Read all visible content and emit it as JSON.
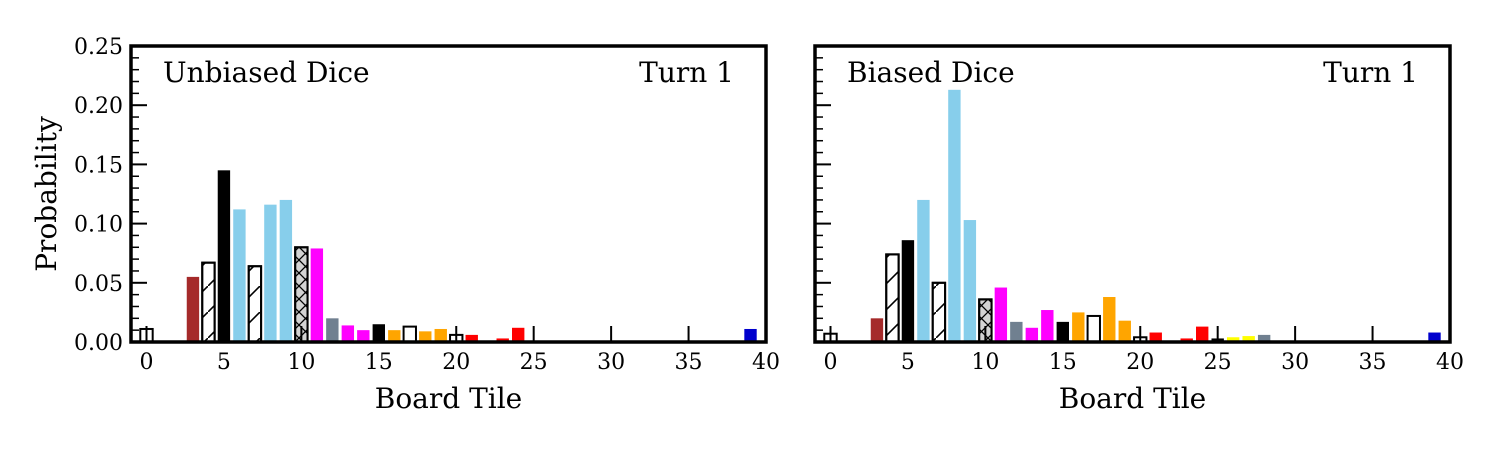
{
  "chart_data": [
    {
      "type": "bar",
      "annotation_left": "Unbiased Dice",
      "annotation_right": "Turn 1",
      "xlabel": "Board Tile",
      "ylabel": "Probability",
      "xlim": [
        -1,
        40
      ],
      "ylim": [
        0,
        0.25
      ],
      "xticks": [
        "0",
        "5",
        "10",
        "15",
        "20",
        "25",
        "30",
        "35",
        "40"
      ],
      "yticks": [
        "0.00",
        "0.05",
        "0.10",
        "0.15",
        "0.20",
        "0.25"
      ],
      "bars": [
        {
          "x": 0,
          "value": 0.011,
          "color": "#ffffff",
          "hatch": "none"
        },
        {
          "x": 3,
          "value": 0.055,
          "color": "#a52a2a",
          "hatch": "none"
        },
        {
          "x": 4,
          "value": 0.067,
          "color": "#ffffff",
          "hatch": "slash"
        },
        {
          "x": 5,
          "value": 0.145,
          "color": "#000000",
          "hatch": "none"
        },
        {
          "x": 6,
          "value": 0.112,
          "color": "#87ceeb",
          "hatch": "none"
        },
        {
          "x": 7,
          "value": 0.064,
          "color": "#ffffff",
          "hatch": "slash"
        },
        {
          "x": 8,
          "value": 0.116,
          "color": "#87ceeb",
          "hatch": "none"
        },
        {
          "x": 9,
          "value": 0.12,
          "color": "#87ceeb",
          "hatch": "none"
        },
        {
          "x": 10,
          "value": 0.08,
          "color": "#d3d3d3",
          "hatch": "cross"
        },
        {
          "x": 11,
          "value": 0.079,
          "color": "#ff00ff",
          "hatch": "none"
        },
        {
          "x": 12,
          "value": 0.02,
          "color": "#708090",
          "hatch": "none"
        },
        {
          "x": 13,
          "value": 0.014,
          "color": "#ff00ff",
          "hatch": "none"
        },
        {
          "x": 14,
          "value": 0.01,
          "color": "#ff00ff",
          "hatch": "none"
        },
        {
          "x": 15,
          "value": 0.015,
          "color": "#000000",
          "hatch": "none"
        },
        {
          "x": 16,
          "value": 0.01,
          "color": "#ffa500",
          "hatch": "none"
        },
        {
          "x": 17,
          "value": 0.013,
          "color": "#ffffff",
          "hatch": "none"
        },
        {
          "x": 18,
          "value": 0.009,
          "color": "#ffa500",
          "hatch": "none"
        },
        {
          "x": 19,
          "value": 0.011,
          "color": "#ffa500",
          "hatch": "none"
        },
        {
          "x": 20,
          "value": 0.006,
          "color": "#ffffff",
          "hatch": "none"
        },
        {
          "x": 21,
          "value": 0.006,
          "color": "#ff0000",
          "hatch": "none"
        },
        {
          "x": 23,
          "value": 0.003,
          "color": "#ff0000",
          "hatch": "none"
        },
        {
          "x": 24,
          "value": 0.012,
          "color": "#ff0000",
          "hatch": "none"
        },
        {
          "x": 39,
          "value": 0.011,
          "color": "#0000cd",
          "hatch": "none"
        }
      ]
    },
    {
      "type": "bar",
      "annotation_left": "Biased Dice",
      "annotation_right": "Turn 1",
      "xlabel": "Board Tile",
      "ylabel": "",
      "xlim": [
        -1,
        40
      ],
      "ylim": [
        0,
        0.25
      ],
      "xticks": [
        "0",
        "5",
        "10",
        "15",
        "20",
        "25",
        "30",
        "35",
        "40"
      ],
      "yticks": [],
      "bars": [
        {
          "x": 0,
          "value": 0.007,
          "color": "#ffffff",
          "hatch": "none"
        },
        {
          "x": 3,
          "value": 0.02,
          "color": "#a52a2a",
          "hatch": "none"
        },
        {
          "x": 4,
          "value": 0.074,
          "color": "#ffffff",
          "hatch": "slash"
        },
        {
          "x": 5,
          "value": 0.086,
          "color": "#000000",
          "hatch": "none"
        },
        {
          "x": 6,
          "value": 0.12,
          "color": "#87ceeb",
          "hatch": "none"
        },
        {
          "x": 7,
          "value": 0.05,
          "color": "#ffffff",
          "hatch": "slash"
        },
        {
          "x": 8,
          "value": 0.213,
          "color": "#87ceeb",
          "hatch": "none"
        },
        {
          "x": 9,
          "value": 0.103,
          "color": "#87ceeb",
          "hatch": "none"
        },
        {
          "x": 10,
          "value": 0.036,
          "color": "#d3d3d3",
          "hatch": "cross"
        },
        {
          "x": 11,
          "value": 0.046,
          "color": "#ff00ff",
          "hatch": "none"
        },
        {
          "x": 12,
          "value": 0.017,
          "color": "#708090",
          "hatch": "none"
        },
        {
          "x": 13,
          "value": 0.012,
          "color": "#ff00ff",
          "hatch": "none"
        },
        {
          "x": 14,
          "value": 0.027,
          "color": "#ff00ff",
          "hatch": "none"
        },
        {
          "x": 15,
          "value": 0.017,
          "color": "#000000",
          "hatch": "none"
        },
        {
          "x": 16,
          "value": 0.025,
          "color": "#ffa500",
          "hatch": "none"
        },
        {
          "x": 17,
          "value": 0.022,
          "color": "#ffffff",
          "hatch": "none"
        },
        {
          "x": 18,
          "value": 0.038,
          "color": "#ffa500",
          "hatch": "none"
        },
        {
          "x": 19,
          "value": 0.018,
          "color": "#ffa500",
          "hatch": "none"
        },
        {
          "x": 20,
          "value": 0.004,
          "color": "#ffffff",
          "hatch": "none"
        },
        {
          "x": 21,
          "value": 0.008,
          "color": "#ff0000",
          "hatch": "none"
        },
        {
          "x": 23,
          "value": 0.003,
          "color": "#ff0000",
          "hatch": "none"
        },
        {
          "x": 24,
          "value": 0.013,
          "color": "#ff0000",
          "hatch": "none"
        },
        {
          "x": 25,
          "value": 0.003,
          "color": "#000000",
          "hatch": "none"
        },
        {
          "x": 26,
          "value": 0.004,
          "color": "#ffff00",
          "hatch": "none"
        },
        {
          "x": 27,
          "value": 0.005,
          "color": "#ffff00",
          "hatch": "none"
        },
        {
          "x": 28,
          "value": 0.006,
          "color": "#708090",
          "hatch": "none"
        },
        {
          "x": 39,
          "value": 0.008,
          "color": "#0000cd",
          "hatch": "none"
        }
      ]
    }
  ]
}
